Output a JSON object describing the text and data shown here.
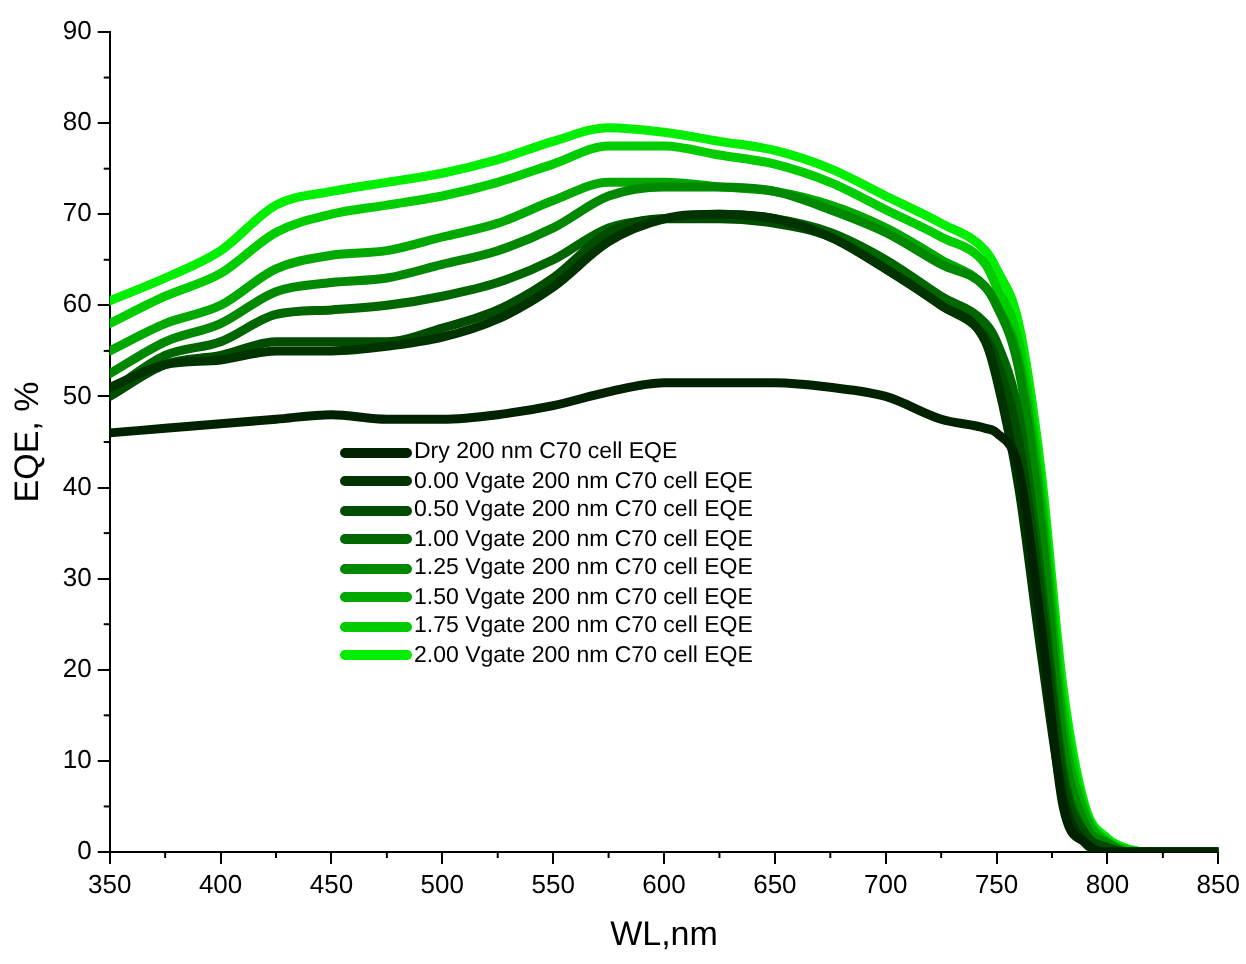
{
  "chart_data": {
    "type": "line",
    "xlabel": "WL,nm",
    "ylabel": "EQE, %",
    "xlim": [
      350,
      850
    ],
    "ylim": [
      0,
      90
    ],
    "xticks": [
      350,
      400,
      450,
      500,
      550,
      600,
      650,
      700,
      750,
      800,
      850
    ],
    "yticks": [
      0,
      10,
      20,
      30,
      40,
      50,
      60,
      70,
      80,
      90
    ],
    "grid": false,
    "legend": "bottom left",
    "marker": "none",
    "line_style": "solid",
    "x": [
      350,
      375,
      400,
      425,
      450,
      475,
      500,
      525,
      550,
      575,
      600,
      625,
      650,
      675,
      700,
      725,
      745,
      750,
      760,
      770,
      780,
      790,
      800,
      810,
      820,
      850
    ],
    "series": [
      {
        "name": "Dry 200 nm C70 cell EQE",
        "color": "#002200",
        "values": [
          46,
          46.5,
          47,
          47.5,
          48,
          47.5,
          47.5,
          48,
          49,
          50.5,
          51.5,
          51.5,
          51.5,
          51,
          50,
          47.5,
          46.5,
          46,
          42,
          25,
          5,
          1,
          0,
          0,
          0,
          0
        ]
      },
      {
        "name": "0.00 Vgate 200 nm C70 cell EQE",
        "color": "#003300",
        "values": [
          51,
          53.5,
          54,
          55,
          55,
          55.5,
          56.5,
          58.5,
          62,
          67,
          69.5,
          70,
          69.5,
          67.5,
          64,
          60,
          56,
          52,
          40,
          22,
          6,
          1,
          0,
          0,
          0,
          0
        ]
      },
      {
        "name": "0.50 Vgate 200 nm C70 cell EQE",
        "color": "#004d00",
        "values": [
          50,
          53.5,
          54.5,
          56,
          56,
          56,
          57.5,
          59.5,
          63,
          68,
          69.5,
          69.5,
          69,
          67.5,
          64,
          60,
          56.5,
          54,
          45,
          28,
          8,
          2,
          0.5,
          0,
          0,
          0
        ]
      },
      {
        "name": "1.00 Vgate 200 nm C70 cell EQE",
        "color": "#006600",
        "values": [
          50.5,
          54.5,
          56,
          59,
          59.5,
          60,
          61,
          62.5,
          65,
          68.5,
          69.5,
          70,
          69.5,
          68,
          65,
          61,
          58,
          56,
          48,
          30,
          9,
          2,
          0.5,
          0,
          0,
          0
        ]
      },
      {
        "name": "1.25 Vgate 200 nm C70 cell EQE",
        "color": "#008800",
        "values": [
          52.5,
          56,
          58,
          61.5,
          62.5,
          63,
          64.5,
          66,
          68.5,
          72,
          73,
          73,
          72.5,
          70.5,
          68,
          64.5,
          62,
          60,
          53,
          36,
          12,
          3,
          1,
          0,
          0,
          0
        ]
      },
      {
        "name": "1.50 Vgate 200 nm C70 cell EQE",
        "color": "#00a800",
        "values": [
          55,
          58,
          60,
          64,
          65.5,
          66,
          67.5,
          69,
          71.5,
          73.5,
          73.5,
          73,
          72.5,
          71,
          68.5,
          65,
          62,
          60,
          54,
          38,
          14,
          4,
          1,
          0,
          0,
          0
        ]
      },
      {
        "name": "1.75 Vgate 200 nm C70 cell EQE",
        "color": "#00cc00",
        "values": [
          58,
          61,
          63.5,
          68,
          70,
          71,
          72,
          73.5,
          75.5,
          77.5,
          77.5,
          76.5,
          75.5,
          73.5,
          70.5,
          67.5,
          64.5,
          62,
          56,
          40,
          16,
          4.5,
          1.2,
          0.2,
          0,
          0
        ]
      },
      {
        "name": "2.00 Vgate 200 nm C70 cell EQE",
        "color": "#00ee00",
        "values": [
          60.5,
          63,
          66,
          71,
          72.5,
          73.5,
          74.5,
          76,
          78,
          79.5,
          79,
          78,
          77,
          75,
          72,
          69,
          66,
          64,
          58,
          42,
          18,
          5,
          1.5,
          0.3,
          0,
          0
        ]
      }
    ]
  }
}
